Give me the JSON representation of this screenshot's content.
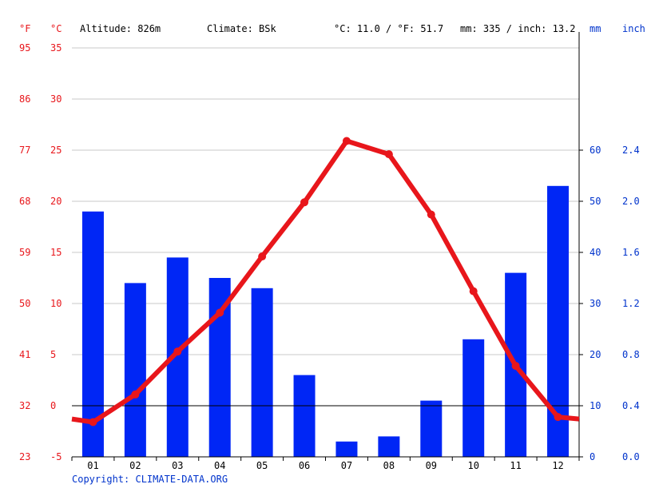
{
  "header": {
    "unit_f": "°F",
    "unit_c": "°C",
    "altitude": "Altitude: 826m",
    "climate": "Climate: BSk",
    "avg_temp": "°C: 11.0 / °F: 51.7",
    "avg_precip": "mm: 335 / inch: 13.2",
    "unit_mm": "mm",
    "unit_inch": "inch"
  },
  "footer": {
    "copyright": "Copyright: CLIMATE-DATA.ORG"
  },
  "colors": {
    "temperature": "#e8161b",
    "precipitation": "#0026f5",
    "axis_text_blue": "#0033cc",
    "grid": "#c8c8c8"
  },
  "chart_data": {
    "type": "bar+line",
    "categories": [
      "01",
      "02",
      "03",
      "04",
      "05",
      "06",
      "07",
      "08",
      "09",
      "10",
      "11",
      "12"
    ],
    "series": [
      {
        "name": "Precipitation",
        "kind": "bar",
        "unit": "mm",
        "axis": "right",
        "values": [
          48,
          34,
          39,
          35,
          33,
          16,
          3,
          4,
          11,
          23,
          36,
          53
        ]
      },
      {
        "name": "Temperature",
        "kind": "line",
        "unit": "°C",
        "axis": "left",
        "values": [
          -1.6,
          1.1,
          5.3,
          9.1,
          14.6,
          19.9,
          25.9,
          24.6,
          18.7,
          11.2,
          3.9,
          -1.1
        ]
      }
    ],
    "line_edge_values": [
      -1.3,
      -1.3
    ],
    "y_left_c": {
      "ticks": [
        "35",
        "30",
        "25",
        "20",
        "15",
        "10",
        "5",
        "0",
        "-5"
      ],
      "range": [
        -5,
        35
      ]
    },
    "y_left_f": {
      "ticks": [
        "95",
        "86",
        "77",
        "68",
        "59",
        "50",
        "41",
        "32",
        "23"
      ],
      "range": [
        23,
        95
      ]
    },
    "y_right_mm": {
      "ticks": [
        "60",
        "50",
        "40",
        "30",
        "20",
        "10",
        "0"
      ],
      "range": [
        0,
        80
      ]
    },
    "y_right_inch": {
      "ticks": [
        "2.4",
        "2.0",
        "1.6",
        "1.2",
        "0.8",
        "0.4",
        "0.0"
      ]
    },
    "grid": true,
    "legend": "none"
  }
}
